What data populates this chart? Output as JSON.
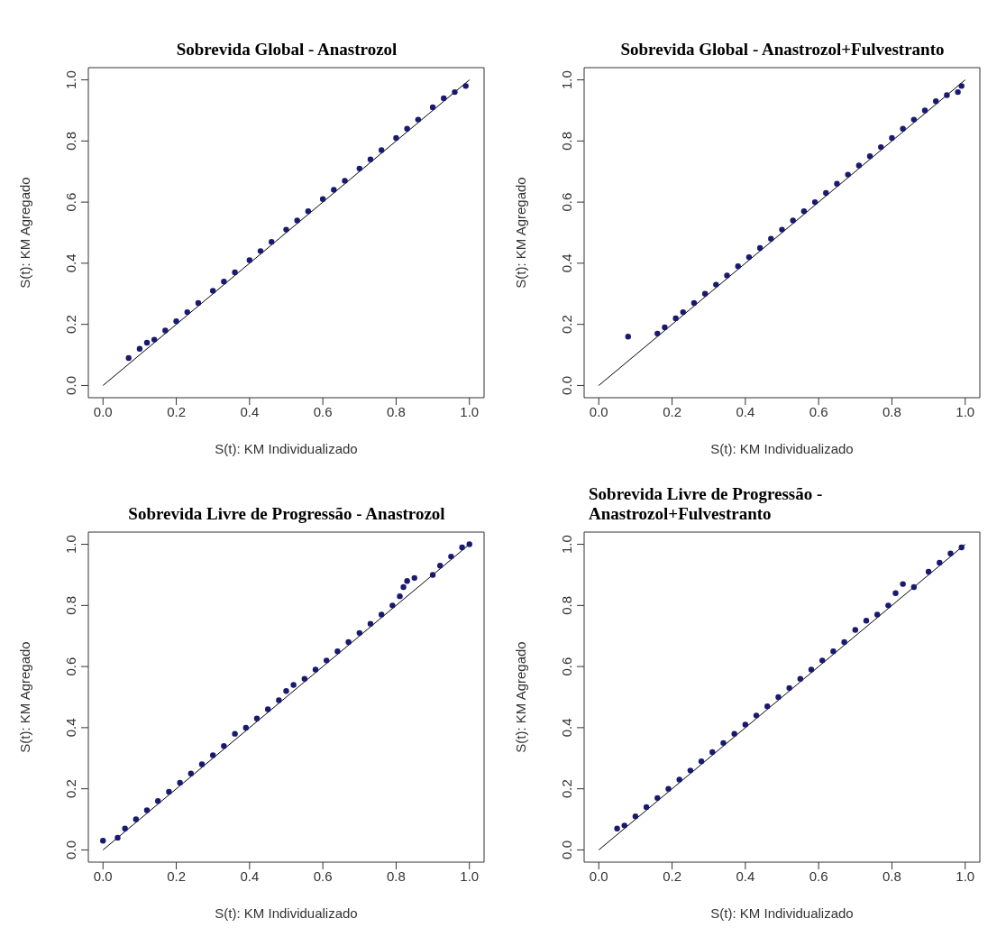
{
  "chart_data": [
    {
      "type": "scatter",
      "title": "Sobrevida Global - Anastrozol",
      "xlabel": "S(t): KM Individualizado",
      "ylabel": "S(t): KM Agregado",
      "xlim": [
        -0.04,
        1.04
      ],
      "ylim": [
        -0.04,
        1.04
      ],
      "xticks": [
        {
          "value": 0,
          "label": "0.0"
        },
        {
          "value": 0.2,
          "label": "0.2"
        },
        {
          "value": 0.4,
          "label": "0.4"
        },
        {
          "value": 0.6,
          "label": "0.6"
        },
        {
          "value": 0.8,
          "label": "0.8"
        },
        {
          "value": 1,
          "label": "1.0"
        }
      ],
      "yticks": [
        {
          "value": 0,
          "label": "0.0"
        },
        {
          "value": 0.2,
          "label": "0.2"
        },
        {
          "value": 0.4,
          "label": "0.4"
        },
        {
          "value": 0.6,
          "label": "0.6"
        },
        {
          "value": 0.8,
          "label": "0.8"
        },
        {
          "value": 1,
          "label": "1.0"
        }
      ],
      "grid": false,
      "series": [
        {
          "marker": "circle",
          "color": "#191970",
          "x": [
            0.07,
            0.1,
            0.12,
            0.14,
            0.17,
            0.2,
            0.23,
            0.26,
            0.3,
            0.33,
            0.36,
            0.4,
            0.43,
            0.46,
            0.5,
            0.53,
            0.56,
            0.6,
            0.63,
            0.66,
            0.7,
            0.73,
            0.76,
            0.8,
            0.83,
            0.86,
            0.9,
            0.93,
            0.96,
            0.99
          ],
          "values": [
            0.09,
            0.12,
            0.14,
            0.15,
            0.18,
            0.21,
            0.24,
            0.27,
            0.31,
            0.34,
            0.37,
            0.41,
            0.44,
            0.47,
            0.51,
            0.54,
            0.57,
            0.61,
            0.64,
            0.67,
            0.71,
            0.74,
            0.77,
            0.81,
            0.84,
            0.87,
            0.91,
            0.94,
            0.96,
            0.98
          ]
        },
        {
          "type": "line",
          "color": "#000000",
          "x": [
            0,
            1
          ],
          "values": [
            0,
            1
          ]
        }
      ]
    },
    {
      "type": "scatter",
      "title": "Sobrevida Global - Anastrozol+Fulvestranto",
      "xlabel": "S(t): KM Individualizado",
      "ylabel": "S(t): KM Agregado",
      "xlim": [
        -0.04,
        1.04
      ],
      "ylim": [
        -0.04,
        1.04
      ],
      "xticks": [
        {
          "value": 0,
          "label": "0.0"
        },
        {
          "value": 0.2,
          "label": "0.2"
        },
        {
          "value": 0.4,
          "label": "0.4"
        },
        {
          "value": 0.6,
          "label": "0.6"
        },
        {
          "value": 0.8,
          "label": "0.8"
        },
        {
          "value": 1,
          "label": "1.0"
        }
      ],
      "yticks": [
        {
          "value": 0,
          "label": "0.0"
        },
        {
          "value": 0.2,
          "label": "0.2"
        },
        {
          "value": 0.4,
          "label": "0.4"
        },
        {
          "value": 0.6,
          "label": "0.6"
        },
        {
          "value": 0.8,
          "label": "0.8"
        },
        {
          "value": 1,
          "label": "1.0"
        }
      ],
      "grid": false,
      "series": [
        {
          "marker": "circle",
          "color": "#191970",
          "x": [
            0.08,
            0.16,
            0.18,
            0.21,
            0.23,
            0.26,
            0.29,
            0.32,
            0.35,
            0.38,
            0.41,
            0.44,
            0.47,
            0.5,
            0.53,
            0.56,
            0.59,
            0.62,
            0.65,
            0.68,
            0.71,
            0.74,
            0.77,
            0.8,
            0.83,
            0.86,
            0.89,
            0.92,
            0.95,
            0.98,
            0.99
          ],
          "values": [
            0.16,
            0.17,
            0.19,
            0.22,
            0.24,
            0.27,
            0.3,
            0.33,
            0.36,
            0.39,
            0.42,
            0.45,
            0.48,
            0.51,
            0.54,
            0.57,
            0.6,
            0.63,
            0.66,
            0.69,
            0.72,
            0.75,
            0.78,
            0.81,
            0.84,
            0.87,
            0.9,
            0.93,
            0.95,
            0.96,
            0.98
          ]
        },
        {
          "type": "line",
          "color": "#000000",
          "x": [
            0,
            1
          ],
          "values": [
            0,
            1
          ]
        }
      ]
    },
    {
      "type": "scatter",
      "title": "Sobrevida Livre de Progressão - Anastrozol",
      "xlabel": "S(t): KM Individualizado",
      "ylabel": "S(t): KM Agregado",
      "xlim": [
        -0.04,
        1.04
      ],
      "ylim": [
        -0.04,
        1.04
      ],
      "xticks": [
        {
          "value": 0,
          "label": "0.0"
        },
        {
          "value": 0.2,
          "label": "0.2"
        },
        {
          "value": 0.4,
          "label": "0.4"
        },
        {
          "value": 0.6,
          "label": "0.6"
        },
        {
          "value": 0.8,
          "label": "0.8"
        },
        {
          "value": 1,
          "label": "1.0"
        }
      ],
      "yticks": [
        {
          "value": 0,
          "label": "0.0"
        },
        {
          "value": 0.2,
          "label": "0.2"
        },
        {
          "value": 0.4,
          "label": "0.4"
        },
        {
          "value": 0.6,
          "label": "0.6"
        },
        {
          "value": 0.8,
          "label": "0.8"
        },
        {
          "value": 1,
          "label": "1.0"
        }
      ],
      "grid": false,
      "series": [
        {
          "marker": "circle",
          "color": "#191970",
          "x": [
            0,
            0.04,
            0.06,
            0.09,
            0.12,
            0.15,
            0.18,
            0.21,
            0.24,
            0.27,
            0.3,
            0.33,
            0.36,
            0.39,
            0.42,
            0.45,
            0.48,
            0.5,
            0.52,
            0.55,
            0.58,
            0.61,
            0.64,
            0.67,
            0.7,
            0.73,
            0.76,
            0.79,
            0.81,
            0.82,
            0.83,
            0.85,
            0.9,
            0.92,
            0.95,
            0.98,
            1.0
          ],
          "values": [
            0.03,
            0.04,
            0.07,
            0.1,
            0.13,
            0.16,
            0.19,
            0.22,
            0.25,
            0.28,
            0.31,
            0.34,
            0.38,
            0.4,
            0.43,
            0.46,
            0.49,
            0.52,
            0.54,
            0.56,
            0.59,
            0.62,
            0.65,
            0.68,
            0.71,
            0.74,
            0.77,
            0.8,
            0.83,
            0.86,
            0.88,
            0.89,
            0.9,
            0.93,
            0.96,
            0.99,
            1.0
          ]
        },
        {
          "type": "line",
          "color": "#000000",
          "x": [
            0,
            1
          ],
          "values": [
            0,
            1
          ]
        }
      ]
    },
    {
      "type": "scatter",
      "title": "Sobrevida Livre de Progressão - Anastrozol+Fulvestranto",
      "xlabel": "S(t): KM Individualizado",
      "ylabel": "S(t): KM Agregado",
      "xlim": [
        -0.04,
        1.04
      ],
      "ylim": [
        -0.04,
        1.04
      ],
      "xticks": [
        {
          "value": 0,
          "label": "0.0"
        },
        {
          "value": 0.2,
          "label": "0.2"
        },
        {
          "value": 0.4,
          "label": "0.4"
        },
        {
          "value": 0.6,
          "label": "0.6"
        },
        {
          "value": 0.8,
          "label": "0.8"
        },
        {
          "value": 1,
          "label": "1.0"
        }
      ],
      "yticks": [
        {
          "value": 0,
          "label": "0.0"
        },
        {
          "value": 0.2,
          "label": "0.2"
        },
        {
          "value": 0.4,
          "label": "0.4"
        },
        {
          "value": 0.6,
          "label": "0.6"
        },
        {
          "value": 0.8,
          "label": "0.8"
        },
        {
          "value": 1,
          "label": "1.0"
        }
      ],
      "grid": false,
      "series": [
        {
          "marker": "circle",
          "color": "#191970",
          "x": [
            0.05,
            0.07,
            0.1,
            0.13,
            0.16,
            0.19,
            0.22,
            0.25,
            0.28,
            0.31,
            0.34,
            0.37,
            0.4,
            0.43,
            0.46,
            0.49,
            0.52,
            0.55,
            0.58,
            0.61,
            0.64,
            0.67,
            0.7,
            0.73,
            0.76,
            0.79,
            0.81,
            0.83,
            0.86,
            0.9,
            0.93,
            0.96,
            0.99
          ],
          "values": [
            0.07,
            0.08,
            0.11,
            0.14,
            0.17,
            0.2,
            0.23,
            0.26,
            0.29,
            0.32,
            0.35,
            0.38,
            0.41,
            0.44,
            0.47,
            0.5,
            0.53,
            0.56,
            0.59,
            0.62,
            0.65,
            0.68,
            0.72,
            0.75,
            0.77,
            0.8,
            0.84,
            0.87,
            0.86,
            0.91,
            0.94,
            0.97,
            0.99
          ]
        },
        {
          "type": "line",
          "color": "#000000",
          "x": [
            0,
            1
          ],
          "values": [
            0,
            1
          ]
        }
      ]
    }
  ]
}
